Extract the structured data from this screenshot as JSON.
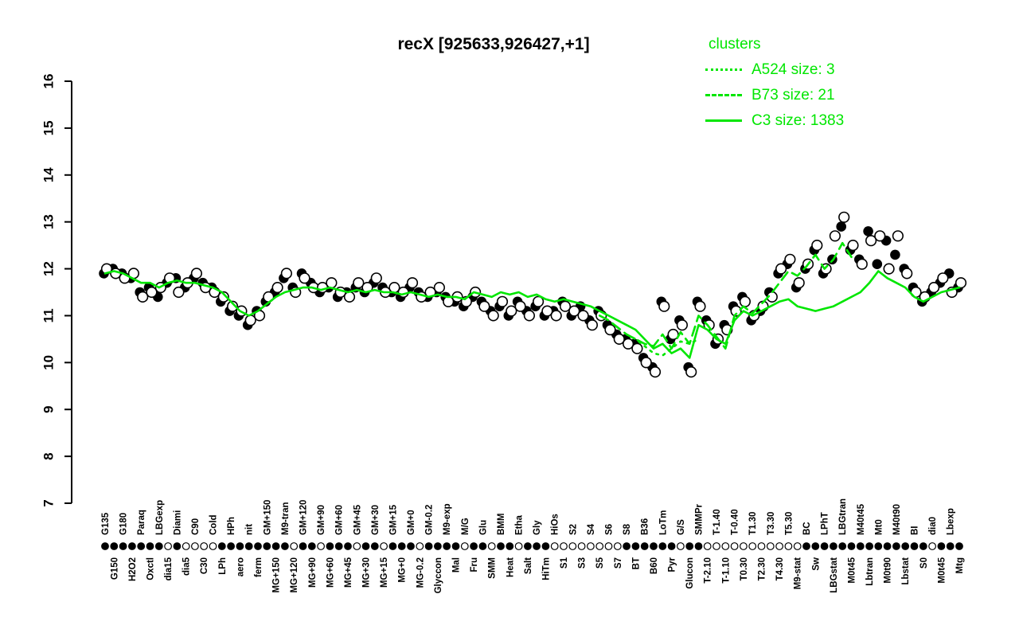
{
  "colors": {
    "cluster": "#00e600",
    "point_filled": "#000000",
    "point_open_fill": "#ffffff",
    "axis": "#000000"
  },
  "legend": {
    "title": "clusters",
    "items": [
      {
        "label": "A524 size: 3",
        "style": "dotted"
      },
      {
        "label": "B73 size: 21",
        "style": "dashed"
      },
      {
        "label": "C3 size: 1383",
        "style": "solid"
      }
    ]
  },
  "chart_data": {
    "type": "scatter",
    "title": "recX [925633,926427,+1]",
    "ylim": [
      7,
      16
    ],
    "yticks": [
      7,
      8,
      9,
      10,
      11,
      12,
      13,
      14,
      15,
      16
    ],
    "grid": false,
    "legend_position": "top-right",
    "categories": [
      "G135",
      "G150",
      "G180",
      "H2O2",
      "Paraq",
      "Oxctl",
      "LBGexp",
      "dia15",
      "Diami",
      "dia5",
      "C90",
      "C30",
      "Cold",
      "LPh",
      "HPh",
      "aero",
      "nit",
      "ferm",
      "GM+150",
      "MG+150",
      "M9-tran",
      "MG+120",
      "GM+120",
      "MG+90",
      "GM+90",
      "MG+60",
      "GM+60",
      "MG+45",
      "GM+45",
      "MG+30",
      "GM+30",
      "MG+15",
      "GM+15",
      "MG+0",
      "GM+0",
      "MG-0.2",
      "GM-0.2",
      "Glyccon",
      "M9-exp",
      "Mal",
      "M/G",
      "Fru",
      "Glu",
      "SMM",
      "BMM",
      "Heat",
      "Etha",
      "Salt",
      "Gly",
      "HiTm",
      "HiOs",
      "S1",
      "S2",
      "S3",
      "S4",
      "S5",
      "S6",
      "S7",
      "S8",
      "BT",
      "B36",
      "B60",
      "LoTm",
      "Pyr",
      "G/S",
      "Glucon",
      "SMMPr",
      "T-2.10",
      "T-1.40",
      "T-1.10",
      "T-0.40",
      "T0.30",
      "T1.30",
      "T2.30",
      "T3.30",
      "T4.30",
      "T5.30",
      "M9-stat",
      "BC",
      "Sw",
      "LPhT",
      "LBGstat",
      "LBGtran",
      "M0t45",
      "M40t45",
      "Lbtran",
      "Mt0",
      "M0t90",
      "M40t90",
      "Lbstat",
      "BI",
      "S0",
      "dia0",
      "M0t45",
      "Lbexp",
      "Mtg"
    ],
    "axis_markers": "fffffffofooooffffffffoffofffoffofffoffffoffoffofffooooooooffffffoffoooooooooooffffffffffffffofff",
    "series": [
      {
        "name": "expression_filled",
        "marker": "filled-circle",
        "values": [
          11.9,
          12.0,
          11.9,
          11.8,
          11.5,
          11.6,
          11.4,
          11.7,
          11.8,
          11.6,
          11.8,
          11.7,
          11.6,
          11.3,
          11.1,
          11.0,
          10.8,
          11.1,
          11.3,
          11.5,
          11.8,
          11.6,
          11.9,
          11.7,
          11.5,
          11.6,
          11.4,
          11.5,
          11.6,
          11.5,
          11.7,
          11.6,
          11.5,
          11.4,
          11.6,
          11.5,
          11.4,
          11.5,
          11.4,
          11.3,
          11.2,
          11.4,
          11.3,
          11.1,
          11.2,
          11.0,
          11.3,
          11.1,
          11.2,
          11.0,
          11.1,
          11.3,
          11.0,
          11.2,
          10.9,
          11.1,
          10.8,
          10.6,
          10.5,
          10.4,
          10.1,
          9.9,
          11.3,
          10.5,
          10.9,
          9.9,
          11.3,
          10.9,
          10.4,
          10.8,
          11.2,
          11.4,
          10.9,
          11.1,
          11.5,
          11.9,
          12.1,
          11.6,
          12.0,
          12.4,
          11.9,
          12.2,
          12.9,
          12.4,
          12.2,
          12.8,
          12.1,
          12.6,
          12.3,
          12.0,
          11.6,
          11.3,
          11.5,
          11.7,
          11.9,
          11.6
        ]
      },
      {
        "name": "expression_open",
        "marker": "open-circle",
        "values": [
          12.0,
          11.9,
          11.8,
          11.9,
          11.4,
          11.5,
          11.6,
          11.8,
          11.5,
          11.7,
          11.9,
          11.6,
          11.5,
          11.4,
          11.2,
          11.1,
          10.9,
          11.0,
          11.4,
          11.6,
          11.9,
          11.5,
          11.8,
          11.6,
          11.6,
          11.7,
          11.5,
          11.4,
          11.7,
          11.6,
          11.8,
          11.5,
          11.6,
          11.5,
          11.7,
          11.4,
          11.5,
          11.6,
          11.3,
          11.4,
          11.3,
          11.5,
          11.2,
          11.0,
          11.3,
          11.1,
          11.2,
          11.0,
          11.3,
          11.1,
          11.0,
          11.2,
          11.1,
          11.0,
          10.8,
          11.0,
          10.7,
          10.5,
          10.4,
          10.3,
          10.0,
          9.8,
          11.2,
          10.6,
          10.8,
          9.8,
          11.2,
          10.8,
          10.5,
          10.7,
          11.1,
          11.3,
          11.0,
          11.2,
          11.4,
          12.0,
          12.2,
          11.7,
          12.1,
          12.5,
          12.0,
          12.7,
          13.1,
          12.5,
          12.1,
          12.6,
          12.7,
          12.0,
          12.7,
          11.9,
          11.5,
          11.4,
          11.6,
          11.8,
          11.5,
          11.7
        ]
      },
      {
        "name": "C3",
        "type": "line",
        "dash": "solid",
        "values": [
          11.9,
          11.95,
          11.9,
          11.8,
          11.7,
          11.7,
          11.6,
          11.7,
          11.75,
          11.7,
          11.7,
          11.65,
          11.6,
          11.5,
          11.3,
          11.1,
          11.0,
          11.1,
          11.25,
          11.4,
          11.5,
          11.55,
          11.6,
          11.6,
          11.55,
          11.6,
          11.55,
          11.5,
          11.55,
          11.5,
          11.55,
          11.5,
          11.5,
          11.45,
          11.5,
          11.45,
          11.4,
          11.45,
          11.4,
          11.4,
          11.35,
          11.5,
          11.45,
          11.4,
          11.5,
          11.45,
          11.5,
          11.4,
          11.45,
          11.35,
          11.3,
          11.35,
          11.3,
          11.25,
          11.2,
          11.1,
          11.0,
          10.9,
          10.8,
          10.7,
          10.5,
          10.3,
          10.4,
          10.2,
          10.3,
          10.1,
          10.8,
          10.7,
          10.5,
          10.4,
          10.9,
          11.1,
          11.0,
          11.1,
          11.2,
          11.3,
          11.35,
          11.2,
          11.15,
          11.1,
          11.15,
          11.2,
          11.3,
          11.4,
          11.5,
          11.7,
          11.95,
          11.8,
          11.7,
          11.6,
          11.4,
          11.3,
          11.4,
          11.5,
          11.55,
          11.6
        ]
      },
      {
        "name": "B73",
        "type": "line",
        "dash": "dashed",
        "segments": [
          {
            "start": 55,
            "values": [
              11.0,
              10.9,
              10.75,
              10.6,
              10.5,
              10.4,
              10.35,
              10.6,
              10.3,
              10.65,
              10.4,
              11.0,
              10.8,
              10.55,
              10.3,
              11.0,
              11.2,
              11.05,
              11.25,
              11.45,
              11.7,
              11.95,
              11.85,
              12.05,
              12.3,
              12.0,
              12.2,
              12.55,
              12.25
            ]
          }
        ]
      },
      {
        "name": "A524",
        "type": "line",
        "dash": "dotted",
        "segments": [
          {
            "start": 58,
            "values": [
              10.6,
              10.5,
              10.35,
              10.2,
              10.15,
              10.3,
              10.45,
              10.4,
              10.5
            ]
          }
        ]
      }
    ]
  }
}
